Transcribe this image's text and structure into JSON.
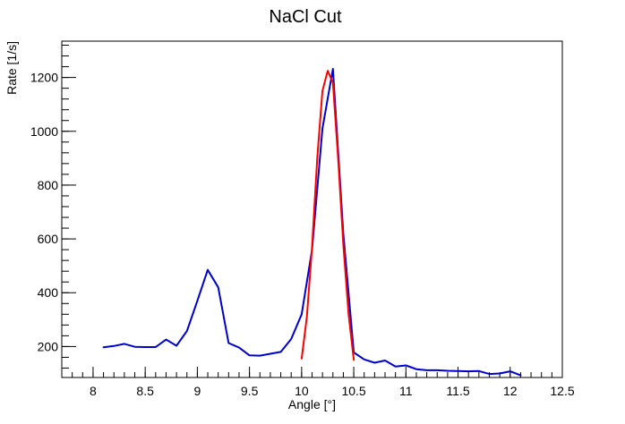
{
  "chart_data": {
    "type": "line",
    "title": "NaCl Cut",
    "xlabel": "Angle [°]",
    "ylabel": "Rate [1/s]",
    "xlim": [
      7.7,
      12.5
    ],
    "ylim": [
      85,
      1335
    ],
    "x_ticks": [
      8,
      8.5,
      9,
      9.5,
      10,
      10.5,
      11,
      11.5,
      12,
      12.5
    ],
    "x_tick_labels": [
      "8",
      "8.5",
      "9",
      "9.5",
      "10",
      "10.5",
      "11",
      "11.5",
      "12",
      "12.5"
    ],
    "y_ticks": [
      200,
      400,
      600,
      800,
      1000,
      1200
    ],
    "y_tick_labels": [
      "200",
      "400",
      "600",
      "800",
      "1000",
      "1200"
    ],
    "grid": false,
    "legend": "none",
    "series": [
      {
        "color": "#0000cc",
        "x": [
          8.1,
          8.2,
          8.3,
          8.4,
          8.5,
          8.6,
          8.7,
          8.8,
          8.9,
          9.0,
          9.1,
          9.2,
          9.3,
          9.4,
          9.5,
          9.6,
          9.7,
          9.8,
          9.9,
          10.0,
          10.1,
          10.2,
          10.3,
          10.4,
          10.5,
          10.6,
          10.7,
          10.8,
          10.9,
          11.0,
          11.1,
          11.2,
          11.3,
          11.4,
          11.5,
          11.6,
          11.7,
          11.8,
          11.9,
          12.0,
          12.1
        ],
        "values": [
          197,
          202,
          210,
          199,
          198,
          198,
          226,
          203,
          258,
          370,
          485,
          420,
          213,
          196,
          167,
          166,
          173,
          180,
          228,
          320,
          560,
          1010,
          1232,
          620,
          178,
          152,
          140,
          148,
          126,
          130,
          116,
          112,
          112,
          110,
          109,
          108,
          109,
          98,
          100,
          108,
          93
        ]
      },
      {
        "color": "#ff0000",
        "x": [
          10.0,
          10.05,
          10.1,
          10.15,
          10.2,
          10.25,
          10.3,
          10.35,
          10.4,
          10.45,
          10.5
        ],
        "values": [
          155,
          310,
          570,
          900,
          1150,
          1225,
          1180,
          900,
          580,
          320,
          150
        ]
      }
    ]
  }
}
